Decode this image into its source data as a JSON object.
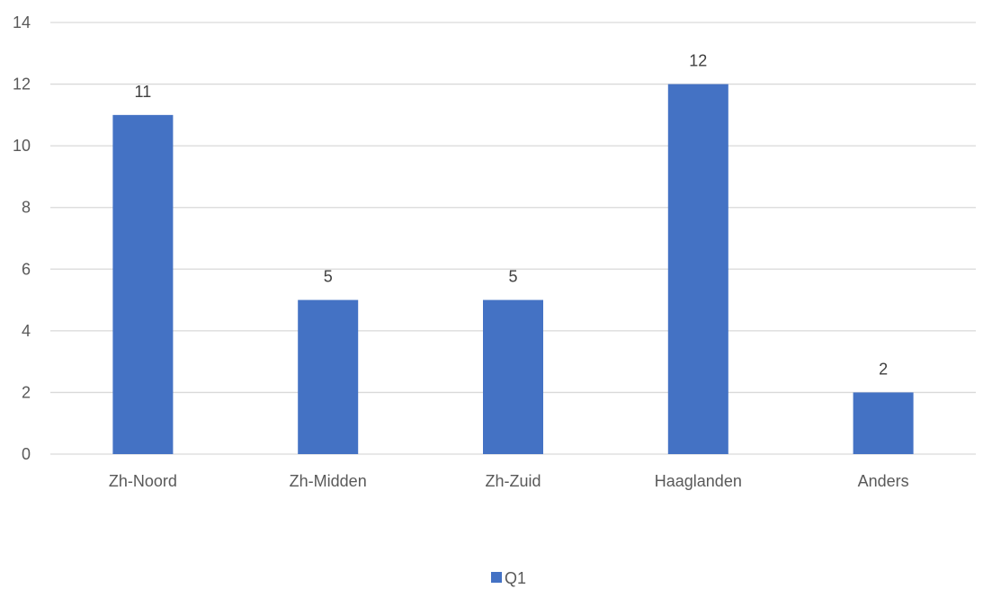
{
  "chart_data": {
    "type": "bar",
    "title": "",
    "xlabel": "",
    "ylabel": "",
    "categories": [
      "Zh-Noord",
      "Zh-Midden",
      "Zh-Zuid",
      "Haaglanden",
      "Anders"
    ],
    "series": [
      {
        "name": "Q1",
        "values": [
          11,
          5,
          5,
          12,
          2
        ],
        "color": "#4472c4"
      }
    ],
    "ylim": [
      0,
      14
    ],
    "yticks": [
      0,
      2,
      4,
      6,
      8,
      10,
      12,
      14
    ],
    "grid": true,
    "data_labels": true,
    "legend": "bottom",
    "colors": {
      "gridline": "#d9d9d9",
      "axis": "#d9d9d9",
      "tick_text": "#595959",
      "label_text": "#404040"
    }
  }
}
